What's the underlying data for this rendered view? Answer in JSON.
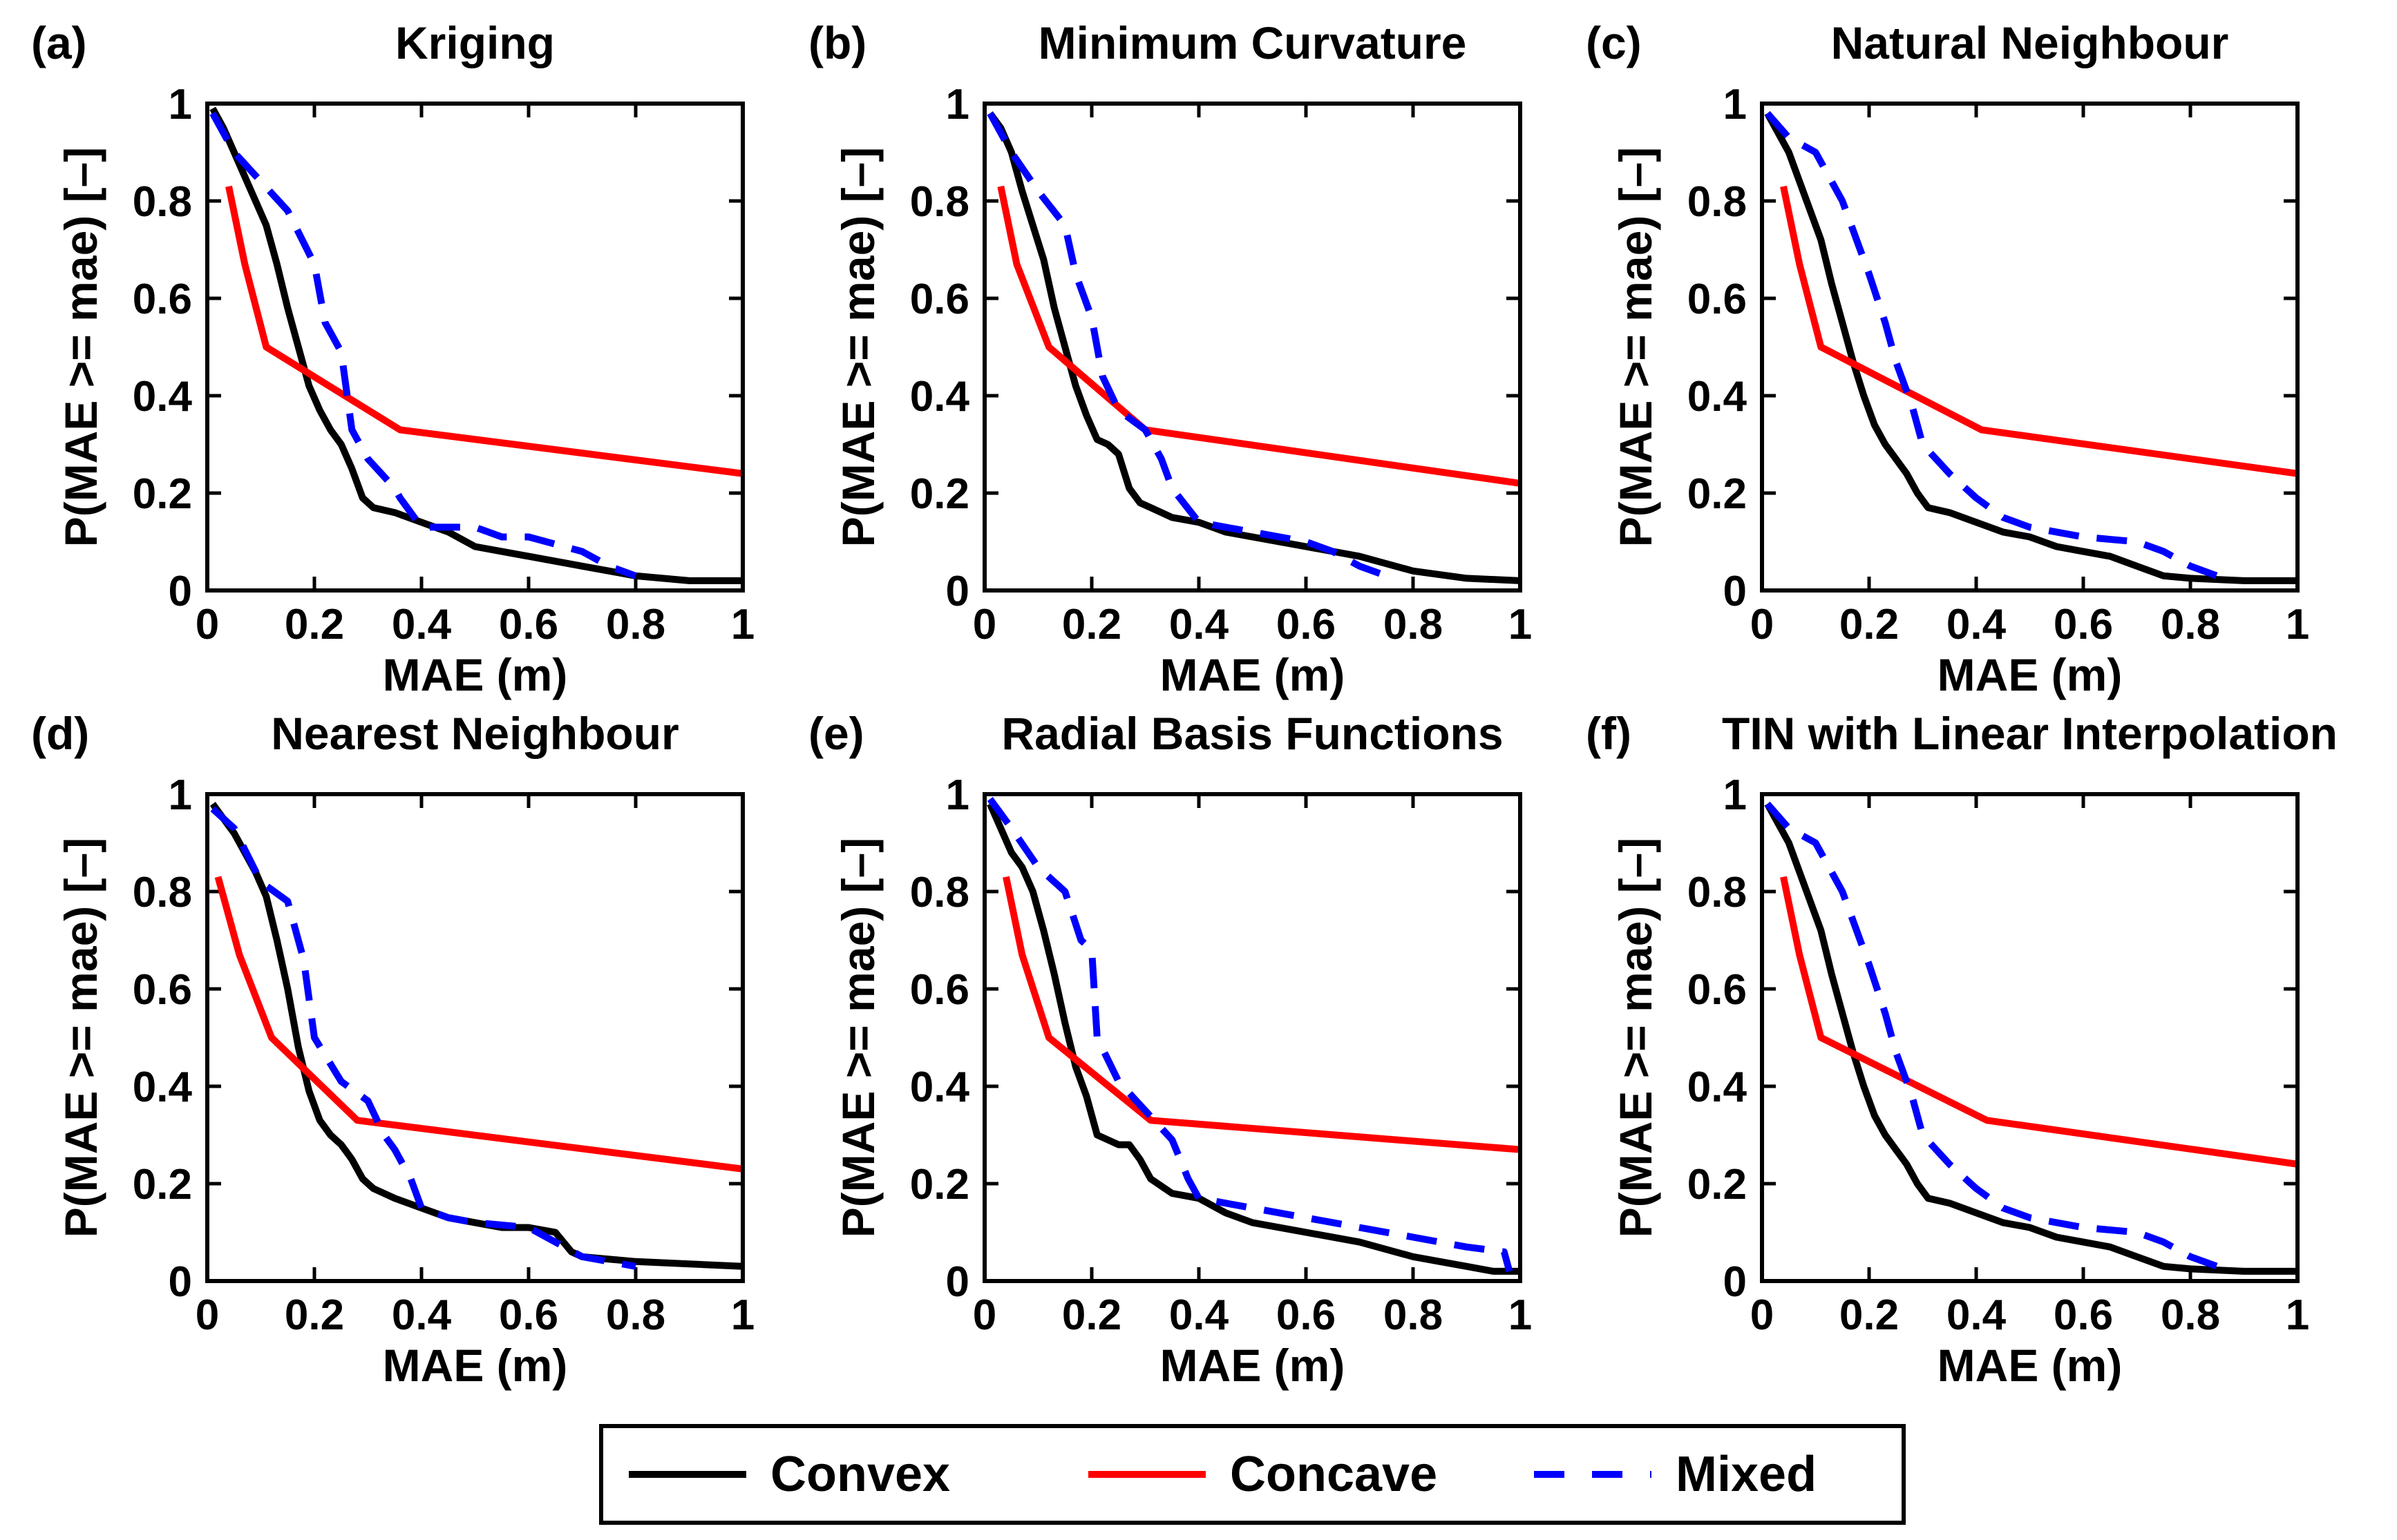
{
  "legend": {
    "entries": [
      {
        "name": "Convex",
        "color": "#000000",
        "dash": "solid"
      },
      {
        "name": "Concave",
        "color": "#ff0000",
        "dash": "solid"
      },
      {
        "name": "Mixed",
        "color": "#0000ff",
        "dash": "dashed"
      }
    ],
    "placement": "bottom-center"
  },
  "chart_data": [
    {
      "type": "line",
      "panel": "(a)",
      "title": "Kriging",
      "xlabel": "MAE (m)",
      "ylabel": "P(MAE >= mae) [–]",
      "xlim": [
        0,
        1
      ],
      "ylim": [
        0,
        1
      ],
      "xticks": [
        "0",
        "0.2",
        "0.4",
        "0.6",
        "0.8",
        "1"
      ],
      "yticks": [
        "0",
        "0.2",
        "0.4",
        "0.6",
        "0.8",
        "1"
      ],
      "series": [
        {
          "name": "Convex",
          "color": "#000000",
          "x": [
            0.01,
            0.03,
            0.05,
            0.07,
            0.09,
            0.11,
            0.13,
            0.15,
            0.17,
            0.19,
            0.21,
            0.23,
            0.25,
            0.27,
            0.29,
            0.31,
            0.35,
            0.4,
            0.45,
            0.5,
            0.55,
            0.6,
            0.65,
            0.7,
            0.75,
            0.8,
            0.85,
            0.9,
            1.0
          ],
          "y": [
            0.99,
            0.95,
            0.9,
            0.85,
            0.8,
            0.75,
            0.67,
            0.58,
            0.5,
            0.42,
            0.37,
            0.33,
            0.3,
            0.25,
            0.19,
            0.17,
            0.16,
            0.14,
            0.12,
            0.09,
            0.08,
            0.07,
            0.06,
            0.05,
            0.04,
            0.03,
            0.025,
            0.02,
            0.02
          ]
        },
        {
          "name": "Concave",
          "color": "#ff0000",
          "x": [
            0.04,
            0.07,
            0.11,
            0.36,
            1.0
          ],
          "y": [
            0.83,
            0.67,
            0.5,
            0.33,
            0.24
          ]
        },
        {
          "name": "Mixed",
          "color": "#0000ff",
          "x": [
            0.01,
            0.05,
            0.1,
            0.15,
            0.2,
            0.22,
            0.25,
            0.27,
            0.3,
            0.35,
            0.36,
            0.4,
            0.5,
            0.55,
            0.6,
            0.7,
            0.75,
            0.8
          ],
          "y": [
            0.98,
            0.9,
            0.84,
            0.78,
            0.67,
            0.55,
            0.49,
            0.33,
            0.27,
            0.21,
            0.19,
            0.13,
            0.13,
            0.11,
            0.11,
            0.08,
            0.05,
            0.03
          ]
        }
      ]
    },
    {
      "type": "line",
      "panel": "(b)",
      "title": "Minimum Curvature",
      "xlabel": "MAE (m)",
      "ylabel": "P(MAE >= mae) [–]",
      "xlim": [
        0,
        1
      ],
      "ylim": [
        0,
        1
      ],
      "xticks": [
        "0",
        "0.2",
        "0.4",
        "0.6",
        "0.8",
        "1"
      ],
      "yticks": [
        "0",
        "0.2",
        "0.4",
        "0.6",
        "0.8",
        "1"
      ],
      "series": [
        {
          "name": "Convex",
          "color": "#000000",
          "x": [
            0.01,
            0.03,
            0.05,
            0.07,
            0.09,
            0.11,
            0.13,
            0.15,
            0.17,
            0.19,
            0.21,
            0.23,
            0.25,
            0.27,
            0.29,
            0.31,
            0.35,
            0.4,
            0.45,
            0.5,
            0.6,
            0.7,
            0.8,
            0.9,
            1.0
          ],
          "y": [
            0.98,
            0.95,
            0.9,
            0.82,
            0.75,
            0.68,
            0.58,
            0.5,
            0.42,
            0.36,
            0.31,
            0.3,
            0.28,
            0.21,
            0.18,
            0.17,
            0.15,
            0.14,
            0.12,
            0.11,
            0.09,
            0.07,
            0.04,
            0.025,
            0.02
          ]
        },
        {
          "name": "Concave",
          "color": "#ff0000",
          "x": [
            0.03,
            0.06,
            0.12,
            0.3,
            1.0
          ],
          "y": [
            0.83,
            0.67,
            0.5,
            0.33,
            0.22
          ]
        },
        {
          "name": "Mixed",
          "color": "#0000ff",
          "x": [
            0.01,
            0.05,
            0.1,
            0.15,
            0.17,
            0.2,
            0.22,
            0.25,
            0.3,
            0.33,
            0.35,
            0.4,
            0.45,
            0.5,
            0.6,
            0.65,
            0.7,
            0.75
          ],
          "y": [
            0.98,
            0.9,
            0.82,
            0.75,
            0.65,
            0.56,
            0.44,
            0.37,
            0.33,
            0.27,
            0.21,
            0.14,
            0.13,
            0.12,
            0.1,
            0.08,
            0.05,
            0.03
          ]
        }
      ]
    },
    {
      "type": "line",
      "panel": "(c)",
      "title": "Natural Neighbour",
      "xlabel": "MAE (m)",
      "ylabel": "P(MAE >= mae) [–]",
      "xlim": [
        0,
        1
      ],
      "ylim": [
        0,
        1
      ],
      "xticks": [
        "0",
        "0.2",
        "0.4",
        "0.6",
        "0.8",
        "1"
      ],
      "yticks": [
        "0",
        "0.2",
        "0.4",
        "0.6",
        "0.8",
        "1"
      ],
      "series": [
        {
          "name": "Convex",
          "color": "#000000",
          "x": [
            0.01,
            0.03,
            0.05,
            0.07,
            0.09,
            0.11,
            0.13,
            0.15,
            0.17,
            0.19,
            0.21,
            0.23,
            0.25,
            0.27,
            0.29,
            0.31,
            0.35,
            0.4,
            0.45,
            0.5,
            0.55,
            0.6,
            0.65,
            0.7,
            0.75,
            0.8,
            0.9,
            1.0
          ],
          "y": [
            0.98,
            0.94,
            0.9,
            0.84,
            0.78,
            0.72,
            0.63,
            0.55,
            0.47,
            0.4,
            0.34,
            0.3,
            0.27,
            0.24,
            0.2,
            0.17,
            0.16,
            0.14,
            0.12,
            0.11,
            0.09,
            0.08,
            0.07,
            0.05,
            0.03,
            0.025,
            0.02,
            0.02
          ]
        },
        {
          "name": "Concave",
          "color": "#ff0000",
          "x": [
            0.04,
            0.07,
            0.11,
            0.41,
            1.0
          ],
          "y": [
            0.83,
            0.67,
            0.5,
            0.33,
            0.24
          ]
        },
        {
          "name": "Mixed",
          "color": "#0000ff",
          "x": [
            0.01,
            0.05,
            0.1,
            0.15,
            0.2,
            0.23,
            0.25,
            0.28,
            0.3,
            0.35,
            0.4,
            0.45,
            0.5,
            0.6,
            0.7,
            0.75,
            0.8,
            0.85
          ],
          "y": [
            0.98,
            0.93,
            0.9,
            0.8,
            0.65,
            0.55,
            0.47,
            0.38,
            0.3,
            0.24,
            0.19,
            0.15,
            0.13,
            0.11,
            0.1,
            0.08,
            0.05,
            0.03
          ]
        }
      ]
    },
    {
      "type": "line",
      "panel": "(d)",
      "title": "Nearest Neighbour",
      "xlabel": "MAE (m)",
      "ylabel": "P(MAE >= mae) [–]",
      "xlim": [
        0,
        1
      ],
      "ylim": [
        0,
        1
      ],
      "xticks": [
        "0",
        "0.2",
        "0.4",
        "0.6",
        "0.8",
        "1"
      ],
      "yticks": [
        "0",
        "0.2",
        "0.4",
        "0.6",
        "0.8",
        "1"
      ],
      "series": [
        {
          "name": "Convex",
          "color": "#000000",
          "x": [
            0.01,
            0.03,
            0.05,
            0.07,
            0.09,
            0.11,
            0.13,
            0.15,
            0.17,
            0.19,
            0.21,
            0.23,
            0.25,
            0.27,
            0.29,
            0.31,
            0.35,
            0.4,
            0.45,
            0.5,
            0.55,
            0.6,
            0.65,
            0.68,
            0.7,
            0.8,
            0.9,
            1.0
          ],
          "y": [
            0.98,
            0.95,
            0.92,
            0.88,
            0.84,
            0.79,
            0.7,
            0.6,
            0.48,
            0.39,
            0.33,
            0.3,
            0.28,
            0.25,
            0.21,
            0.19,
            0.17,
            0.15,
            0.13,
            0.12,
            0.11,
            0.11,
            0.1,
            0.06,
            0.05,
            0.04,
            0.035,
            0.03
          ]
        },
        {
          "name": "Concave",
          "color": "#ff0000",
          "x": [
            0.02,
            0.06,
            0.12,
            0.28,
            1.0
          ],
          "y": [
            0.83,
            0.67,
            0.5,
            0.33,
            0.23
          ]
        },
        {
          "name": "Mixed",
          "color": "#0000ff",
          "x": [
            0.01,
            0.05,
            0.1,
            0.15,
            0.18,
            0.2,
            0.25,
            0.3,
            0.33,
            0.35,
            0.38,
            0.4,
            0.45,
            0.5,
            0.6,
            0.65,
            0.7,
            0.8
          ],
          "y": [
            0.97,
            0.93,
            0.82,
            0.78,
            0.66,
            0.5,
            0.41,
            0.37,
            0.3,
            0.27,
            0.21,
            0.15,
            0.13,
            0.12,
            0.11,
            0.08,
            0.05,
            0.03
          ]
        }
      ]
    },
    {
      "type": "line",
      "panel": "(e)",
      "title": "Radial Basis Functions",
      "xlabel": "MAE (m)",
      "ylabel": "P(MAE >= mae) [–]",
      "xlim": [
        0,
        1
      ],
      "ylim": [
        0,
        1
      ],
      "xticks": [
        "0",
        "0.2",
        "0.4",
        "0.6",
        "0.8",
        "1"
      ],
      "yticks": [
        "0",
        "0.2",
        "0.4",
        "0.6",
        "0.8",
        "1"
      ],
      "series": [
        {
          "name": "Convex",
          "color": "#000000",
          "x": [
            0.01,
            0.03,
            0.05,
            0.07,
            0.09,
            0.11,
            0.13,
            0.15,
            0.17,
            0.19,
            0.21,
            0.23,
            0.25,
            0.27,
            0.29,
            0.3,
            0.31,
            0.35,
            0.4,
            0.45,
            0.5,
            0.6,
            0.7,
            0.8,
            0.9,
            0.95,
            1.0
          ],
          "y": [
            0.98,
            0.93,
            0.88,
            0.85,
            0.8,
            0.72,
            0.63,
            0.53,
            0.44,
            0.38,
            0.3,
            0.29,
            0.28,
            0.28,
            0.25,
            0.23,
            0.21,
            0.18,
            0.17,
            0.14,
            0.12,
            0.1,
            0.08,
            0.05,
            0.03,
            0.02,
            0.02
          ]
        },
        {
          "name": "Concave",
          "color": "#ff0000",
          "x": [
            0.04,
            0.07,
            0.12,
            0.31,
            1.0
          ],
          "y": [
            0.83,
            0.67,
            0.5,
            0.33,
            0.27
          ]
        },
        {
          "name": "Mixed",
          "color": "#0000ff",
          "x": [
            0.01,
            0.05,
            0.1,
            0.15,
            0.18,
            0.2,
            0.21,
            0.25,
            0.3,
            0.35,
            0.38,
            0.4,
            0.5,
            0.6,
            0.7,
            0.8,
            0.9,
            0.97,
            0.98
          ],
          "y": [
            0.99,
            0.93,
            0.85,
            0.8,
            0.7,
            0.68,
            0.5,
            0.41,
            0.35,
            0.29,
            0.21,
            0.17,
            0.15,
            0.13,
            0.11,
            0.09,
            0.07,
            0.06,
            0.02
          ]
        }
      ]
    },
    {
      "type": "line",
      "panel": "(f)",
      "title": "TIN with Linear Interpolation",
      "xlabel": "MAE (m)",
      "ylabel": "P(MAE >= mae) [–]",
      "xlim": [
        0,
        1
      ],
      "ylim": [
        0,
        1
      ],
      "xticks": [
        "0",
        "0.2",
        "0.4",
        "0.6",
        "0.8",
        "1"
      ],
      "yticks": [
        "0",
        "0.2",
        "0.4",
        "0.6",
        "0.8",
        "1"
      ],
      "series": [
        {
          "name": "Convex",
          "color": "#000000",
          "x": [
            0.01,
            0.03,
            0.05,
            0.07,
            0.09,
            0.11,
            0.13,
            0.15,
            0.17,
            0.19,
            0.21,
            0.23,
            0.25,
            0.27,
            0.29,
            0.31,
            0.35,
            0.4,
            0.45,
            0.5,
            0.55,
            0.6,
            0.65,
            0.7,
            0.75,
            0.8,
            0.9,
            1.0
          ],
          "y": [
            0.98,
            0.94,
            0.9,
            0.84,
            0.78,
            0.72,
            0.63,
            0.55,
            0.47,
            0.4,
            0.34,
            0.3,
            0.27,
            0.24,
            0.2,
            0.17,
            0.16,
            0.14,
            0.12,
            0.11,
            0.09,
            0.08,
            0.07,
            0.05,
            0.03,
            0.025,
            0.02,
            0.02
          ]
        },
        {
          "name": "Concave",
          "color": "#ff0000",
          "x": [
            0.04,
            0.07,
            0.11,
            0.42,
            1.0
          ],
          "y": [
            0.83,
            0.67,
            0.5,
            0.33,
            0.24
          ]
        },
        {
          "name": "Mixed",
          "color": "#0000ff",
          "x": [
            0.01,
            0.05,
            0.1,
            0.15,
            0.2,
            0.23,
            0.25,
            0.28,
            0.3,
            0.35,
            0.4,
            0.45,
            0.5,
            0.6,
            0.7,
            0.75,
            0.8,
            0.85
          ],
          "y": [
            0.98,
            0.93,
            0.9,
            0.8,
            0.65,
            0.55,
            0.47,
            0.38,
            0.3,
            0.24,
            0.19,
            0.15,
            0.13,
            0.11,
            0.1,
            0.08,
            0.05,
            0.03
          ]
        }
      ]
    }
  ]
}
